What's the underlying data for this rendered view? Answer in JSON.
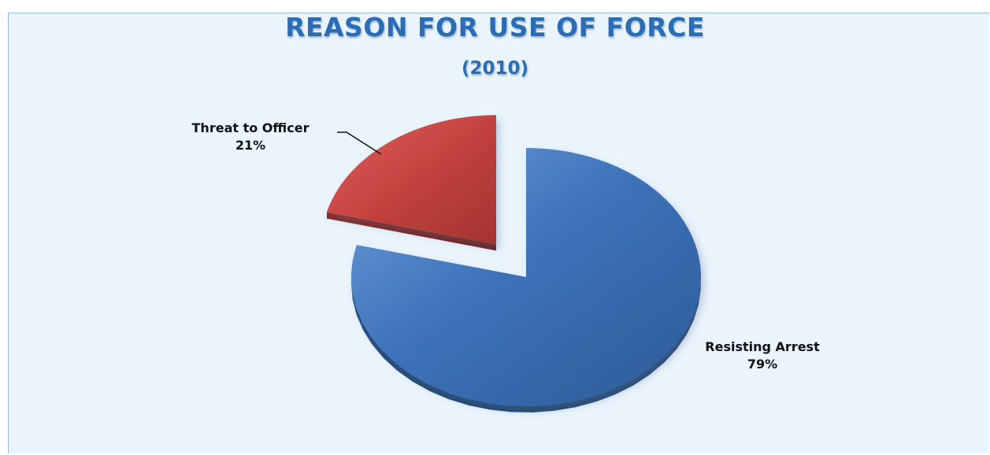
{
  "chart_data": {
    "type": "pie",
    "title": "REASON FOR USE OF FORCE",
    "subtitle": "(2010)",
    "slices": [
      {
        "name": "Resisting Arrest",
        "value": 79,
        "label": "79%",
        "color": "#3b72b8"
      },
      {
        "name": "Threat to Officer",
        "value": 21,
        "label": "21%",
        "color": "#c0403d"
      }
    ],
    "exploded_slice": "Threat to Officer",
    "style": "3d"
  }
}
